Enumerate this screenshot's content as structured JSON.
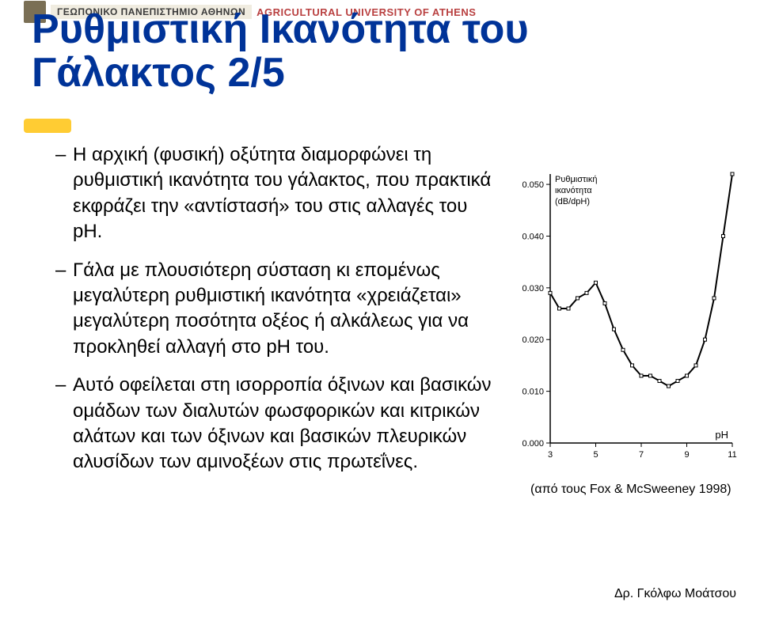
{
  "banner": {
    "greek": "ΓΕΩΠΟΝΙΚΟ ΠΑΝΕΠΙΣΤΗΜΙΟ ΑΘΗΝΩΝ",
    "en": "AGRICULTURAL UNIVERSITY OF ATHENS"
  },
  "title_line1": "Ρυθμιστική Ικανότητα του",
  "title_line2": "Γάλακτος 2/5",
  "bullets": [
    "Η αρχική (φυσική) οξύτητα διαμορφώνει τη ρυθμιστική ικανότητα του γάλακτος, που πρακτικά εκφράζει την «αντίστασή» του στις αλλαγές του pH.",
    "Γάλα με πλουσιότερη σύσταση κι επομένως μεγαλύτερη ρυθμιστική ικανότητα «χρειάζεται» μεγαλύτερη ποσότητα οξέος ή αλκάλεως για να προκληθεί αλλαγή στο pH του.",
    "Αυτό οφείλεται στη ισορροπία όξινων και βασικών ομάδων των διαλυτών φωσφορικών και κιτρικών αλάτων και των όξινων και βασικών πλευρικών αλυσίδων των αμινοξέων στις πρωτεΐνες."
  ],
  "chart": {
    "type": "line",
    "title_top": "Ρυθμιστική",
    "title_bot": "ικανότητα",
    "ylabel2": "(dB/dpH)",
    "xlabel": "pH",
    "xlim": [
      3,
      11
    ],
    "xticks": [
      3,
      5,
      7,
      9,
      11
    ],
    "ylim": [
      0.0,
      0.052
    ],
    "yticks": [
      0.0,
      0.01,
      0.02,
      0.03,
      0.04,
      0.05
    ],
    "ytick_labels": [
      "0.000",
      "0.010",
      "0.020",
      "0.030",
      "0.040",
      "0.050"
    ],
    "axis_color": "#000000",
    "line_color": "#000000",
    "marker_color": "#000000",
    "background_color": "#ffffff",
    "line_width": 2,
    "marker": "square",
    "marker_size": 4,
    "label_fontsize": 11,
    "px": [
      3.0,
      3.4,
      3.8,
      4.2,
      4.6,
      5.0,
      5.4,
      5.8,
      6.2,
      6.6,
      7.0,
      7.4,
      7.8,
      8.2,
      8.6,
      9.0,
      9.4,
      9.8,
      10.2,
      10.6,
      11.0
    ],
    "py": [
      0.029,
      0.026,
      0.026,
      0.028,
      0.029,
      0.031,
      0.027,
      0.022,
      0.018,
      0.015,
      0.013,
      0.013,
      0.012,
      0.011,
      0.012,
      0.013,
      0.015,
      0.02,
      0.028,
      0.04,
      0.052
    ]
  },
  "caption": "(από τους Fox & McSweeney 1998)",
  "footer": "Δρ. Γκόλφω Μοάτσου",
  "colors": {
    "title": "#003398",
    "accent": "#ffcc33",
    "banner_en": "#b94040"
  }
}
